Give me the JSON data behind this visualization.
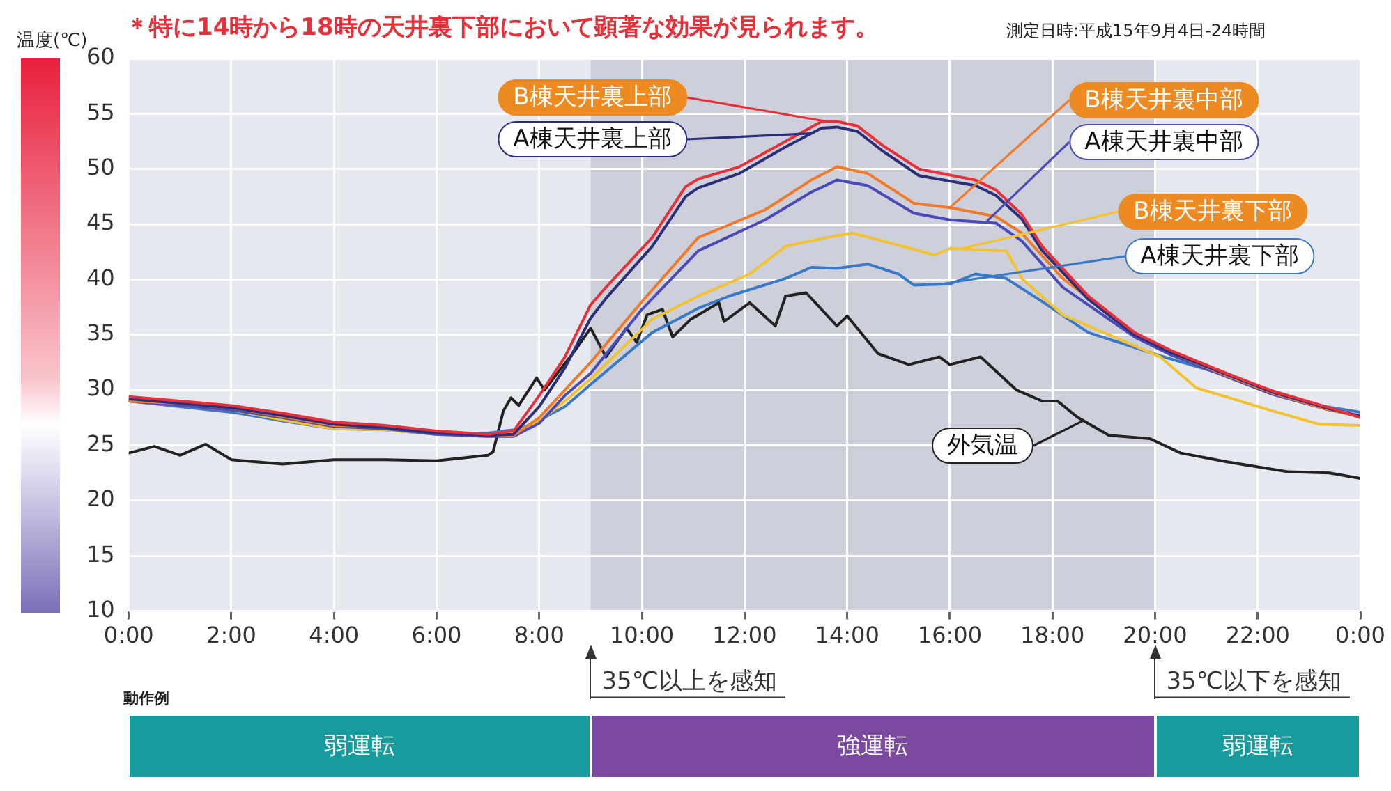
{
  "chart_data": {
    "type": "line",
    "title": "＊特に14時から18時の天井裏下部において顕著な効果が見られます。",
    "subtitle": "測定日時:平成15年9月4日-24時間",
    "ylabel": "温度(℃)",
    "xlim": [
      0,
      24
    ],
    "xticks": [
      {
        "value": 0,
        "label": "0:00"
      },
      {
        "value": 2,
        "label": "2:00"
      },
      {
        "value": 4,
        "label": "4:00"
      },
      {
        "value": 6,
        "label": "6:00"
      },
      {
        "value": 8,
        "label": "8:00"
      },
      {
        "value": 10,
        "label": "10:00"
      },
      {
        "value": 12,
        "label": "12:00"
      },
      {
        "value": 14,
        "label": "14:00"
      },
      {
        "value": 16,
        "label": "16:00"
      },
      {
        "value": 18,
        "label": "18:00"
      },
      {
        "value": 20,
        "label": "20:00"
      },
      {
        "value": 22,
        "label": "22:00"
      },
      {
        "value": 24,
        "label": "0:00"
      }
    ],
    "ylim": [
      10,
      60
    ],
    "yticks": [
      10,
      15,
      20,
      25,
      30,
      35,
      40,
      45,
      50,
      55,
      60
    ],
    "grid": true,
    "legend": "bottom right",
    "line_style": "solid",
    "series": [
      {
        "name": "B棟天井裏上部",
        "color": "#e8303a",
        "x": [
          0,
          1,
          2,
          3,
          4,
          5,
          6,
          7,
          7.5,
          8,
          8.5,
          9,
          9.3,
          10.2,
          10.85,
          11.1,
          11.9,
          12.8,
          13.5,
          13.8,
          14.2,
          14.7,
          15.4,
          16.5,
          16.9,
          17.4,
          17.8,
          18.7,
          19.6,
          20.3,
          21.4,
          22.3,
          23.4,
          24
        ],
        "values": [
          29.4,
          29.0,
          28.6,
          27.9,
          27.1,
          26.8,
          26.3,
          26.0,
          26.3,
          29.5,
          33.0,
          37.7,
          39.3,
          43.8,
          48.4,
          49.1,
          50.2,
          52.5,
          54.3,
          54.3,
          53.9,
          52.1,
          50.0,
          49.0,
          48.1,
          45.9,
          43.0,
          38.5,
          35.2,
          33.6,
          31.5,
          29.9,
          28.4,
          27.5
        ]
      },
      {
        "name": "A棟天井裏上部",
        "color": "#2b2f7a",
        "x": [
          0,
          1,
          2,
          3,
          4,
          5,
          6,
          7,
          7.5,
          8,
          8.5,
          9,
          9.3,
          10.2,
          10.85,
          11.1,
          11.9,
          12.8,
          13.5,
          13.8,
          14.2,
          14.7,
          15.4,
          16.5,
          16.9,
          17.4,
          17.8,
          18.7,
          19.6,
          20.3,
          21.4,
          22.3,
          23.4,
          24
        ],
        "values": [
          29.2,
          28.8,
          28.4,
          27.7,
          26.9,
          26.6,
          26.1,
          25.9,
          26.0,
          28.5,
          32.0,
          36.5,
          38.3,
          43.0,
          47.5,
          48.3,
          49.6,
          52.0,
          53.7,
          53.8,
          53.4,
          51.6,
          49.4,
          48.5,
          47.6,
          45.5,
          42.6,
          38.2,
          35.0,
          33.4,
          31.4,
          29.8,
          28.3,
          27.6
        ]
      },
      {
        "name": "B棟天井裏中部",
        "color": "#f07a2a",
        "x": [
          0,
          1,
          2,
          3,
          4,
          5,
          6,
          7,
          7.5,
          8,
          8.5,
          9,
          10,
          11.1,
          12.4,
          13.3,
          13.8,
          14.4,
          15.3,
          16,
          16.9,
          17.4,
          18.2,
          19.6,
          20.3,
          21.4,
          22.3,
          23.4,
          24
        ],
        "values": [
          29.0,
          28.8,
          28.4,
          27.6,
          26.8,
          26.7,
          26.2,
          25.9,
          25.9,
          27.5,
          30.0,
          32.5,
          38.0,
          43.8,
          46.3,
          49.0,
          50.2,
          49.6,
          46.9,
          46.5,
          45.7,
          44.2,
          40.1,
          35.2,
          33.4,
          31.3,
          29.7,
          28.2,
          27.6
        ]
      },
      {
        "name": "A棟天井裏中部",
        "color": "#4a4ab8",
        "x": [
          0,
          1,
          2,
          3,
          4,
          5,
          6,
          7,
          7.5,
          8,
          8.5,
          9,
          10,
          11.1,
          12.4,
          13.3,
          13.8,
          14.4,
          15.3,
          16,
          16.9,
          17.4,
          18.2,
          19.6,
          20.3,
          21.4,
          22.3,
          23.4,
          24
        ],
        "values": [
          29.0,
          28.6,
          28.2,
          27.5,
          26.7,
          26.5,
          26.0,
          25.8,
          25.8,
          27.0,
          29.5,
          31.5,
          37.3,
          42.6,
          45.4,
          47.9,
          49.0,
          48.5,
          46.0,
          45.4,
          45.1,
          43.5,
          39.3,
          34.8,
          33.2,
          31.2,
          29.6,
          28.2,
          27.7
        ]
      },
      {
        "name": "B棟天井裏下部",
        "color": "#f2c230",
        "x": [
          0,
          1,
          2,
          3,
          4,
          5,
          6,
          7,
          7.5,
          8,
          8.5,
          9,
          10.2,
          11.1,
          12.1,
          12.8,
          13.6,
          14.1,
          14.6,
          15.4,
          15.7,
          16,
          17.1,
          17.4,
          18.2,
          19.2,
          20.1,
          20.8,
          22.3,
          23.2,
          24
        ],
        "values": [
          29.0,
          28.6,
          28.2,
          27.3,
          26.5,
          26.4,
          26.0,
          25.8,
          26.2,
          27.2,
          29.0,
          31.0,
          36.4,
          38.5,
          40.5,
          43.0,
          43.8,
          44.2,
          43.6,
          42.6,
          42.2,
          42.8,
          42.6,
          40.1,
          36.8,
          34.8,
          33.0,
          30.2,
          28.1,
          26.9,
          26.8
        ]
      },
      {
        "name": "A棟天井裏下部",
        "color": "#3a78c8",
        "x": [
          0,
          1,
          2,
          3,
          4,
          5,
          6,
          7,
          7.5,
          7.8,
          8.5,
          9,
          10.2,
          11.1,
          11.7,
          12.8,
          13.3,
          13.8,
          14.4,
          15,
          15.3,
          16,
          16.5,
          17.1,
          17.8,
          18.7,
          20.1,
          21.2,
          22.3,
          23.2,
          24
        ],
        "values": [
          29.0,
          28.5,
          28.0,
          27.2,
          26.5,
          26.4,
          26.0,
          26.1,
          26.4,
          26.8,
          28.5,
          30.5,
          35.2,
          37.4,
          38.5,
          40.1,
          41.1,
          41.0,
          41.4,
          40.5,
          39.5,
          39.6,
          40.5,
          40.1,
          38.0,
          35.2,
          33.1,
          31.6,
          29.9,
          28.6,
          28.0
        ]
      },
      {
        "name": "外気温",
        "color": "#222222",
        "x": [
          0,
          0.5,
          1,
          1.5,
          2,
          3,
          4,
          5,
          6,
          7,
          7.1,
          7.3,
          7.45,
          7.6,
          7.95,
          8.1,
          8.7,
          9,
          9.3,
          9.7,
          9.9,
          10.1,
          10.4,
          10.6,
          10.95,
          11.1,
          11.5,
          11.6,
          12.1,
          12.6,
          12.8,
          13.2,
          13.8,
          14,
          14.6,
          15.2,
          15.8,
          16,
          16.6,
          17.3,
          17.8,
          18.1,
          18.5,
          19.1,
          19.9,
          20.5,
          21.4,
          22.6,
          23.4,
          24
        ],
        "values": [
          24.3,
          24.9,
          24.1,
          25.1,
          23.7,
          23.3,
          23.7,
          23.7,
          23.6,
          24.1,
          24.4,
          28.1,
          29.3,
          28.6,
          31.1,
          30.0,
          33.6,
          35.6,
          33.0,
          35.6,
          34.3,
          36.8,
          37.3,
          34.8,
          36.4,
          36.8,
          37.9,
          36.2,
          37.9,
          35.8,
          38.5,
          38.8,
          35.8,
          36.7,
          33.3,
          32.3,
          33.0,
          32.3,
          33.0,
          30.0,
          29.0,
          29.0,
          27.5,
          25.9,
          25.6,
          24.3,
          23.5,
          22.6,
          22.5,
          22.0
        ]
      }
    ],
    "bands": [
      {
        "axis": "x",
        "from": 9,
        "to": 20,
        "color": "#cdd0da"
      }
    ],
    "ref_lines": [
      {
        "axis": "x",
        "value": 9,
        "label": "35℃以上を感知"
      },
      {
        "axis": "x",
        "value": 20,
        "label": "35℃以下を感知"
      }
    ],
    "annotations": [
      "動作例",
      "弱運転",
      "強運転",
      "弱運転"
    ]
  }
}
